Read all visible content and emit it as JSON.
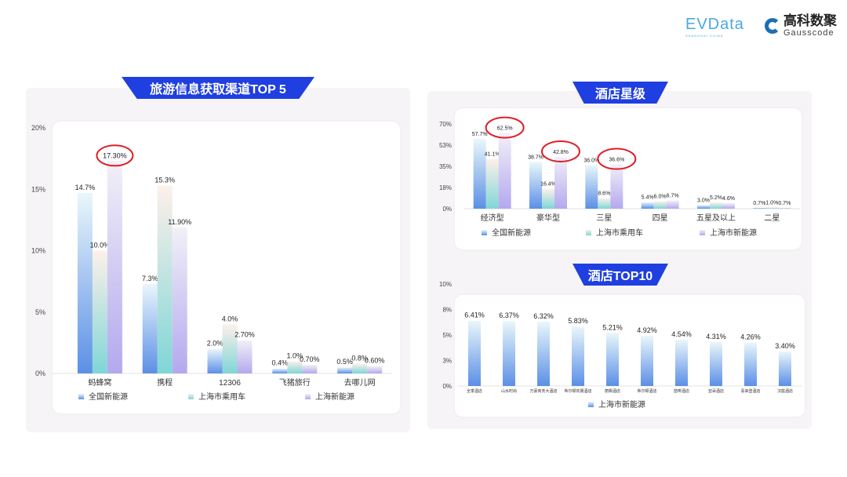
{
  "logos": {
    "evdata": "EVData",
    "evdata_sub": "SHANGHAI CHINA",
    "gauss_cn": "高科数聚",
    "gauss_en": "Gausscode"
  },
  "titles": {
    "left": "旅游信息获取渠道TOP 5",
    "right_top": "酒店星级",
    "right_bottom": "酒店TOP10"
  },
  "colors": {
    "series1": "#5b8fe6",
    "series2": "#7fd6d6",
    "series3": "#b4a8ee",
    "banner": "#1f3fe0",
    "highlight": "#e01e25"
  },
  "chart_data": [
    {
      "type": "bar",
      "title": "旅游信息获取渠道TOP 5",
      "categories": [
        "蚂蜂窝",
        "携程",
        "12306",
        "飞猪旅行",
        "去哪儿网"
      ],
      "ylim": [
        0,
        20
      ],
      "yticks": [
        "0%",
        "5%",
        "10%",
        "15%",
        "20%"
      ],
      "legend": "bottom",
      "series": [
        {
          "name": "全国新能源",
          "values": [
            14.7,
            7.3,
            2.0,
            0.4,
            0.5
          ],
          "labels": [
            "14.7%",
            "7.3%",
            "2.0%",
            "0.4%",
            "0.5%"
          ]
        },
        {
          "name": "上海市乘用车",
          "values": [
            10.0,
            15.3,
            4.0,
            1.0,
            0.8
          ],
          "labels": [
            "10.0%",
            "15.3%",
            "4.0%",
            "1.0%",
            "0.8%"
          ]
        },
        {
          "name": "上海新能源",
          "values": [
            17.3,
            11.9,
            2.7,
            0.7,
            0.6
          ],
          "labels": [
            "17.30%",
            "11.90%",
            "2.70%",
            "0.70%",
            "0.60%"
          ]
        }
      ],
      "highlight": [
        [
          2,
          0
        ]
      ]
    },
    {
      "type": "bar",
      "title": "酒店星级",
      "categories": [
        "经济型",
        "豪华型",
        "三星",
        "四星",
        "五星及以上",
        "二星"
      ],
      "ylim": [
        0,
        70
      ],
      "yticks": [
        "0%",
        "18%",
        "35%",
        "53%",
        "70%"
      ],
      "legend": "bottom",
      "series": [
        {
          "name": "全国新能源",
          "values": [
            57.7,
            38.7,
            36.0,
            5.4,
            3.0,
            0.7
          ],
          "labels": [
            "57.7%",
            "38.7%",
            "36.0%",
            "5.4%",
            "3.0%",
            "0.7%"
          ]
        },
        {
          "name": "上海市乘用车",
          "values": [
            41.1,
            16.4,
            8.6,
            6.0,
            5.2,
            1.0
          ],
          "labels": [
            "41.1%",
            "16.4%",
            "8.6%",
            "6.0%",
            "5.2%",
            "1.0%"
          ]
        },
        {
          "name": "上海市新能源",
          "values": [
            62.5,
            42.8,
            36.6,
            6.7,
            4.6,
            0.7
          ],
          "labels": [
            "62.5%",
            "42.8%",
            "36.6%",
            "6.7%",
            "4.6%",
            "0.7%"
          ]
        }
      ],
      "highlight": [
        [
          2,
          0
        ],
        [
          2,
          1
        ],
        [
          2,
          2
        ]
      ]
    },
    {
      "type": "bar",
      "title": "酒店TOP10",
      "categories": [
        "全季酒店",
        "山水时尚",
        "万豪商务大酒店",
        "希尔顿欢朋酒店",
        "丽枫酒店",
        "希尔顿酒店",
        "喆啡酒店",
        "亚朵酒店",
        "喜来登酒店",
        "汉庭酒店"
      ],
      "ylim": [
        0,
        10
      ],
      "yticks": [
        "0%",
        "3%",
        "5%",
        "8%",
        "10%"
      ],
      "legend": "bottom",
      "series": [
        {
          "name": "上海市新能源",
          "values": [
            6.41,
            6.37,
            6.32,
            5.83,
            5.21,
            4.92,
            4.54,
            4.31,
            4.26,
            3.4
          ],
          "labels": [
            "6.41%",
            "6.37%",
            "6.32%",
            "5.83%",
            "5.21%",
            "4.92%",
            "4.54%",
            "4.31%",
            "4.26%",
            "3.40%"
          ]
        }
      ],
      "highlight": []
    }
  ]
}
